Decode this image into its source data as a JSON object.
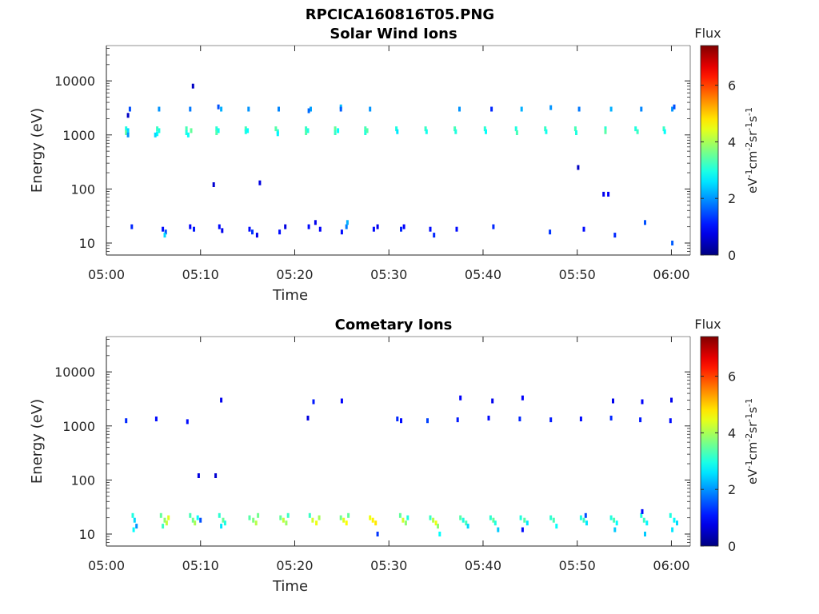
{
  "figure": {
    "title": "RPCICA160816T05.PNG"
  },
  "chart_data": [
    {
      "type": "heatmap",
      "title": "Solar Wind Ions",
      "xlabel": "Time",
      "ylabel": "Energy (eV)",
      "xticks": [
        "05:00",
        "05:10",
        "05:20",
        "05:30",
        "05:40",
        "05:50",
        "06:00"
      ],
      "yticks": [
        "10",
        "100",
        "1000",
        "10000"
      ],
      "yscale": "log",
      "ylim": [
        6,
        45000
      ],
      "xlim_minutes": [
        0,
        62
      ],
      "colorbar": {
        "title": "Flux",
        "unit": "eV^-1 cm^-2 sr^-1 s^-1",
        "ticks": [
          "0",
          "2",
          "4",
          "6"
        ],
        "range": [
          0,
          7.4
        ]
      },
      "points": [
        [
          2.1,
          1300,
          3.0
        ],
        [
          2.1,
          1100,
          3.5
        ],
        [
          2.3,
          1200,
          2.5
        ],
        [
          2.3,
          1000,
          2.0
        ],
        [
          2.5,
          3000,
          1.5
        ],
        [
          2.3,
          2300,
          0.5
        ],
        [
          5.4,
          1300,
          3.2
        ],
        [
          5.4,
          1050,
          2.8
        ],
        [
          5.6,
          1200,
          3.0
        ],
        [
          5.6,
          3000,
          2.0
        ],
        [
          5.2,
          1000,
          2.5
        ],
        [
          8.5,
          1300,
          3.3
        ],
        [
          8.5,
          1100,
          3.0
        ],
        [
          8.7,
          1000,
          2.8
        ],
        [
          9.0,
          1200,
          3.5
        ],
        [
          8.9,
          3000,
          1.8
        ],
        [
          9.2,
          8000,
          0.5
        ],
        [
          11.7,
          1300,
          3.1
        ],
        [
          11.7,
          1100,
          3.4
        ],
        [
          11.9,
          1200,
          2.9
        ],
        [
          12.2,
          3000,
          2.2
        ],
        [
          11.9,
          3300,
          1.5
        ],
        [
          14.8,
          1300,
          3.3
        ],
        [
          14.8,
          1150,
          3.0
        ],
        [
          15.0,
          1200,
          2.8
        ],
        [
          15.1,
          3000,
          2.0
        ],
        [
          18.0,
          1300,
          3.4
        ],
        [
          18.2,
          1150,
          3.1
        ],
        [
          18.2,
          1050,
          2.7
        ],
        [
          18.3,
          3000,
          1.9
        ],
        [
          21.2,
          1300,
          3.2
        ],
        [
          21.2,
          1100,
          3.4
        ],
        [
          21.4,
          1200,
          3.0
        ],
        [
          21.7,
          3000,
          2.1
        ],
        [
          21.5,
          2800,
          1.7
        ],
        [
          24.3,
          1300,
          3.5
        ],
        [
          24.3,
          1100,
          3.2
        ],
        [
          24.6,
          1200,
          2.8
        ],
        [
          24.9,
          3300,
          2.3
        ],
        [
          24.9,
          3000,
          1.6
        ],
        [
          27.5,
          1300,
          3.3
        ],
        [
          27.5,
          1100,
          3.0
        ],
        [
          27.7,
          1200,
          3.4
        ],
        [
          28.0,
          3000,
          2.0
        ],
        [
          30.8,
          1300,
          3.0
        ],
        [
          30.9,
          1150,
          2.6
        ],
        [
          33.9,
          1300,
          3.2
        ],
        [
          34.0,
          1150,
          2.9
        ],
        [
          37.0,
          1300,
          3.3
        ],
        [
          37.1,
          1150,
          3.0
        ],
        [
          37.5,
          3000,
          2.0
        ],
        [
          40.2,
          1300,
          3.1
        ],
        [
          40.3,
          1150,
          2.8
        ],
        [
          40.9,
          3000,
          1.2
        ],
        [
          43.5,
          1300,
          3.0
        ],
        [
          43.6,
          1100,
          3.3
        ],
        [
          44.1,
          3000,
          2.2
        ],
        [
          46.6,
          1300,
          3.2
        ],
        [
          46.7,
          1150,
          2.9
        ],
        [
          47.2,
          3200,
          2.0
        ],
        [
          49.8,
          1300,
          3.3
        ],
        [
          49.9,
          1100,
          3.0
        ],
        [
          50.2,
          3000,
          1.8
        ],
        [
          53.0,
          1300,
          3.1
        ],
        [
          53.0,
          1150,
          3.4
        ],
        [
          53.6,
          3000,
          2.2
        ],
        [
          56.2,
          1300,
          3.0
        ],
        [
          56.4,
          1150,
          3.2
        ],
        [
          56.8,
          3000,
          1.9
        ],
        [
          59.2,
          1300,
          3.2
        ],
        [
          59.3,
          1150,
          2.8
        ],
        [
          60.1,
          3000,
          2.0
        ],
        [
          60.3,
          3300,
          1.5
        ],
        [
          11.4,
          120,
          0.6
        ],
        [
          16.3,
          130,
          0.7
        ],
        [
          50.1,
          250,
          0.5
        ],
        [
          52.8,
          80,
          0.8
        ],
        [
          53.3,
          80,
          0.9
        ],
        [
          2.7,
          20,
          1.2
        ],
        [
          6.0,
          18,
          1.0
        ],
        [
          6.3,
          16,
          1.5
        ],
        [
          6.2,
          14,
          2.5
        ],
        [
          8.9,
          20,
          0.9
        ],
        [
          9.3,
          18,
          1.1
        ],
        [
          12.0,
          20,
          1.0
        ],
        [
          12.3,
          17,
          0.8
        ],
        [
          15.2,
          18,
          1.0
        ],
        [
          15.5,
          16,
          1.3
        ],
        [
          16.0,
          14,
          0.8
        ],
        [
          18.4,
          16,
          1.0
        ],
        [
          19.0,
          20,
          0.7
        ],
        [
          21.5,
          20,
          1.0
        ],
        [
          22.2,
          24,
          0.8
        ],
        [
          22.7,
          18,
          0.9
        ],
        [
          25.0,
          16,
          1.0
        ],
        [
          25.5,
          20,
          1.8
        ],
        [
          25.6,
          24,
          2.2
        ],
        [
          28.4,
          18,
          1.0
        ],
        [
          28.8,
          20,
          0.8
        ],
        [
          31.3,
          18,
          1.2
        ],
        [
          31.6,
          20,
          0.9
        ],
        [
          34.4,
          18,
          1.0
        ],
        [
          34.8,
          14,
          1.2
        ],
        [
          37.2,
          18,
          1.0
        ],
        [
          41.1,
          20,
          1.2
        ],
        [
          47.1,
          16,
          1.3
        ],
        [
          50.7,
          18,
          1.0
        ],
        [
          54.0,
          14,
          1.2
        ],
        [
          57.2,
          24,
          1.5
        ],
        [
          60.1,
          10,
          1.6
        ]
      ]
    },
    {
      "type": "heatmap",
      "title": "Cometary Ions",
      "xlabel": "Time",
      "ylabel": "Energy (eV)",
      "xticks": [
        "05:00",
        "05:10",
        "05:20",
        "05:30",
        "05:40",
        "05:50",
        "06:00"
      ],
      "yticks": [
        "10",
        "100",
        "1000",
        "10000"
      ],
      "yscale": "log",
      "ylim": [
        6,
        45000
      ],
      "xlim_minutes": [
        0,
        62
      ],
      "colorbar": {
        "title": "Flux",
        "unit": "eV^-1 cm^-2 sr^-1 s^-1",
        "ticks": [
          "0",
          "2",
          "4",
          "6"
        ],
        "range": [
          0,
          7.4
        ]
      },
      "points": [
        [
          2.1,
          1250,
          1.2
        ],
        [
          5.3,
          1350,
          1.0
        ],
        [
          8.6,
          1200,
          1.0
        ],
        [
          12.2,
          3000,
          0.8
        ],
        [
          21.4,
          1400,
          0.7
        ],
        [
          22.0,
          2800,
          1.1
        ],
        [
          25.0,
          2900,
          0.9
        ],
        [
          30.9,
          1350,
          1.2
        ],
        [
          31.3,
          1250,
          1.0
        ],
        [
          34.1,
          1250,
          1.4
        ],
        [
          37.3,
          1300,
          1.1
        ],
        [
          37.6,
          3300,
          0.9
        ],
        [
          40.6,
          1400,
          1.0
        ],
        [
          41.0,
          2900,
          0.8
        ],
        [
          43.9,
          1350,
          1.2
        ],
        [
          44.2,
          3300,
          0.9
        ],
        [
          47.2,
          1300,
          1.1
        ],
        [
          50.4,
          1350,
          1.0
        ],
        [
          53.6,
          1400,
          1.2
        ],
        [
          53.8,
          2900,
          0.8
        ],
        [
          56.7,
          1300,
          1.1
        ],
        [
          56.9,
          2800,
          0.9
        ],
        [
          59.9,
          1250,
          1.0
        ],
        [
          60.0,
          3000,
          0.8
        ],
        [
          9.8,
          120,
          0.7
        ],
        [
          11.6,
          120,
          0.6
        ],
        [
          2.8,
          22,
          3.0
        ],
        [
          3.0,
          18,
          2.5
        ],
        [
          3.2,
          14,
          2.0
        ],
        [
          2.9,
          12,
          2.8
        ],
        [
          5.8,
          22,
          3.5
        ],
        [
          6.2,
          18,
          3.8
        ],
        [
          6.4,
          16,
          4.2
        ],
        [
          6.0,
          14,
          3.2
        ],
        [
          6.6,
          20,
          4.4
        ],
        [
          8.9,
          22,
          3.3
        ],
        [
          9.2,
          18,
          3.6
        ],
        [
          9.4,
          16,
          4.0
        ],
        [
          9.7,
          20,
          2.8
        ],
        [
          10.0,
          18,
          1.5
        ],
        [
          12.0,
          22,
          3.1
        ],
        [
          12.4,
          18,
          3.5
        ],
        [
          12.6,
          16,
          3.0
        ],
        [
          12.2,
          14,
          2.6
        ],
        [
          15.2,
          20,
          3.4
        ],
        [
          15.6,
          18,
          3.7
        ],
        [
          15.9,
          16,
          4.1
        ],
        [
          16.1,
          22,
          3.6
        ],
        [
          18.5,
          20,
          3.5
        ],
        [
          18.8,
          18,
          4.2
        ],
        [
          19.1,
          16,
          3.9
        ],
        [
          19.3,
          22,
          3.2
        ],
        [
          21.6,
          22,
          3.2
        ],
        [
          21.9,
          18,
          4.3
        ],
        [
          22.3,
          16,
          4.5
        ],
        [
          22.6,
          20,
          4.0
        ],
        [
          24.9,
          20,
          3.6
        ],
        [
          25.2,
          18,
          4.4
        ],
        [
          25.5,
          16,
          4.6
        ],
        [
          25.7,
          22,
          3.5
        ],
        [
          28.0,
          20,
          4.5
        ],
        [
          28.3,
          18,
          4.7
        ],
        [
          28.6,
          16,
          4.8
        ],
        [
          28.8,
          10,
          1.3
        ],
        [
          31.2,
          22,
          3.5
        ],
        [
          31.5,
          18,
          4.3
        ],
        [
          31.8,
          16,
          3.8
        ],
        [
          32.0,
          20,
          3.0
        ],
        [
          34.4,
          20,
          3.2
        ],
        [
          34.7,
          18,
          4.1
        ],
        [
          35.0,
          16,
          4.5
        ],
        [
          35.2,
          14,
          3.8
        ],
        [
          35.4,
          10,
          2.8
        ],
        [
          37.6,
          20,
          3.4
        ],
        [
          37.9,
          18,
          3.0
        ],
        [
          38.2,
          16,
          3.3
        ],
        [
          38.4,
          14,
          2.5
        ],
        [
          40.8,
          20,
          3.1
        ],
        [
          41.1,
          18,
          3.5
        ],
        [
          41.3,
          16,
          3.0
        ],
        [
          41.6,
          12,
          2.4
        ],
        [
          44.0,
          20,
          3.0
        ],
        [
          44.4,
          18,
          3.4
        ],
        [
          44.7,
          16,
          2.6
        ],
        [
          44.2,
          12,
          1.0
        ],
        [
          47.2,
          20,
          3.1
        ],
        [
          47.5,
          18,
          3.3
        ],
        [
          47.8,
          14,
          2.8
        ],
        [
          50.4,
          20,
          3.0
        ],
        [
          50.7,
          18,
          3.2
        ],
        [
          51.0,
          16,
          2.6
        ],
        [
          50.9,
          22,
          1.5
        ],
        [
          53.6,
          20,
          3.0
        ],
        [
          53.9,
          18,
          3.3
        ],
        [
          54.2,
          16,
          2.8
        ],
        [
          54.0,
          12,
          2.4
        ],
        [
          56.8,
          22,
          3.0
        ],
        [
          57.1,
          18,
          3.2
        ],
        [
          57.4,
          16,
          2.7
        ],
        [
          56.9,
          26,
          1.0
        ],
        [
          57.2,
          10,
          2.4
        ],
        [
          59.9,
          22,
          3.0
        ],
        [
          60.3,
          18,
          2.8
        ],
        [
          60.6,
          16,
          2.5
        ],
        [
          60.1,
          12,
          2.6
        ]
      ]
    }
  ]
}
